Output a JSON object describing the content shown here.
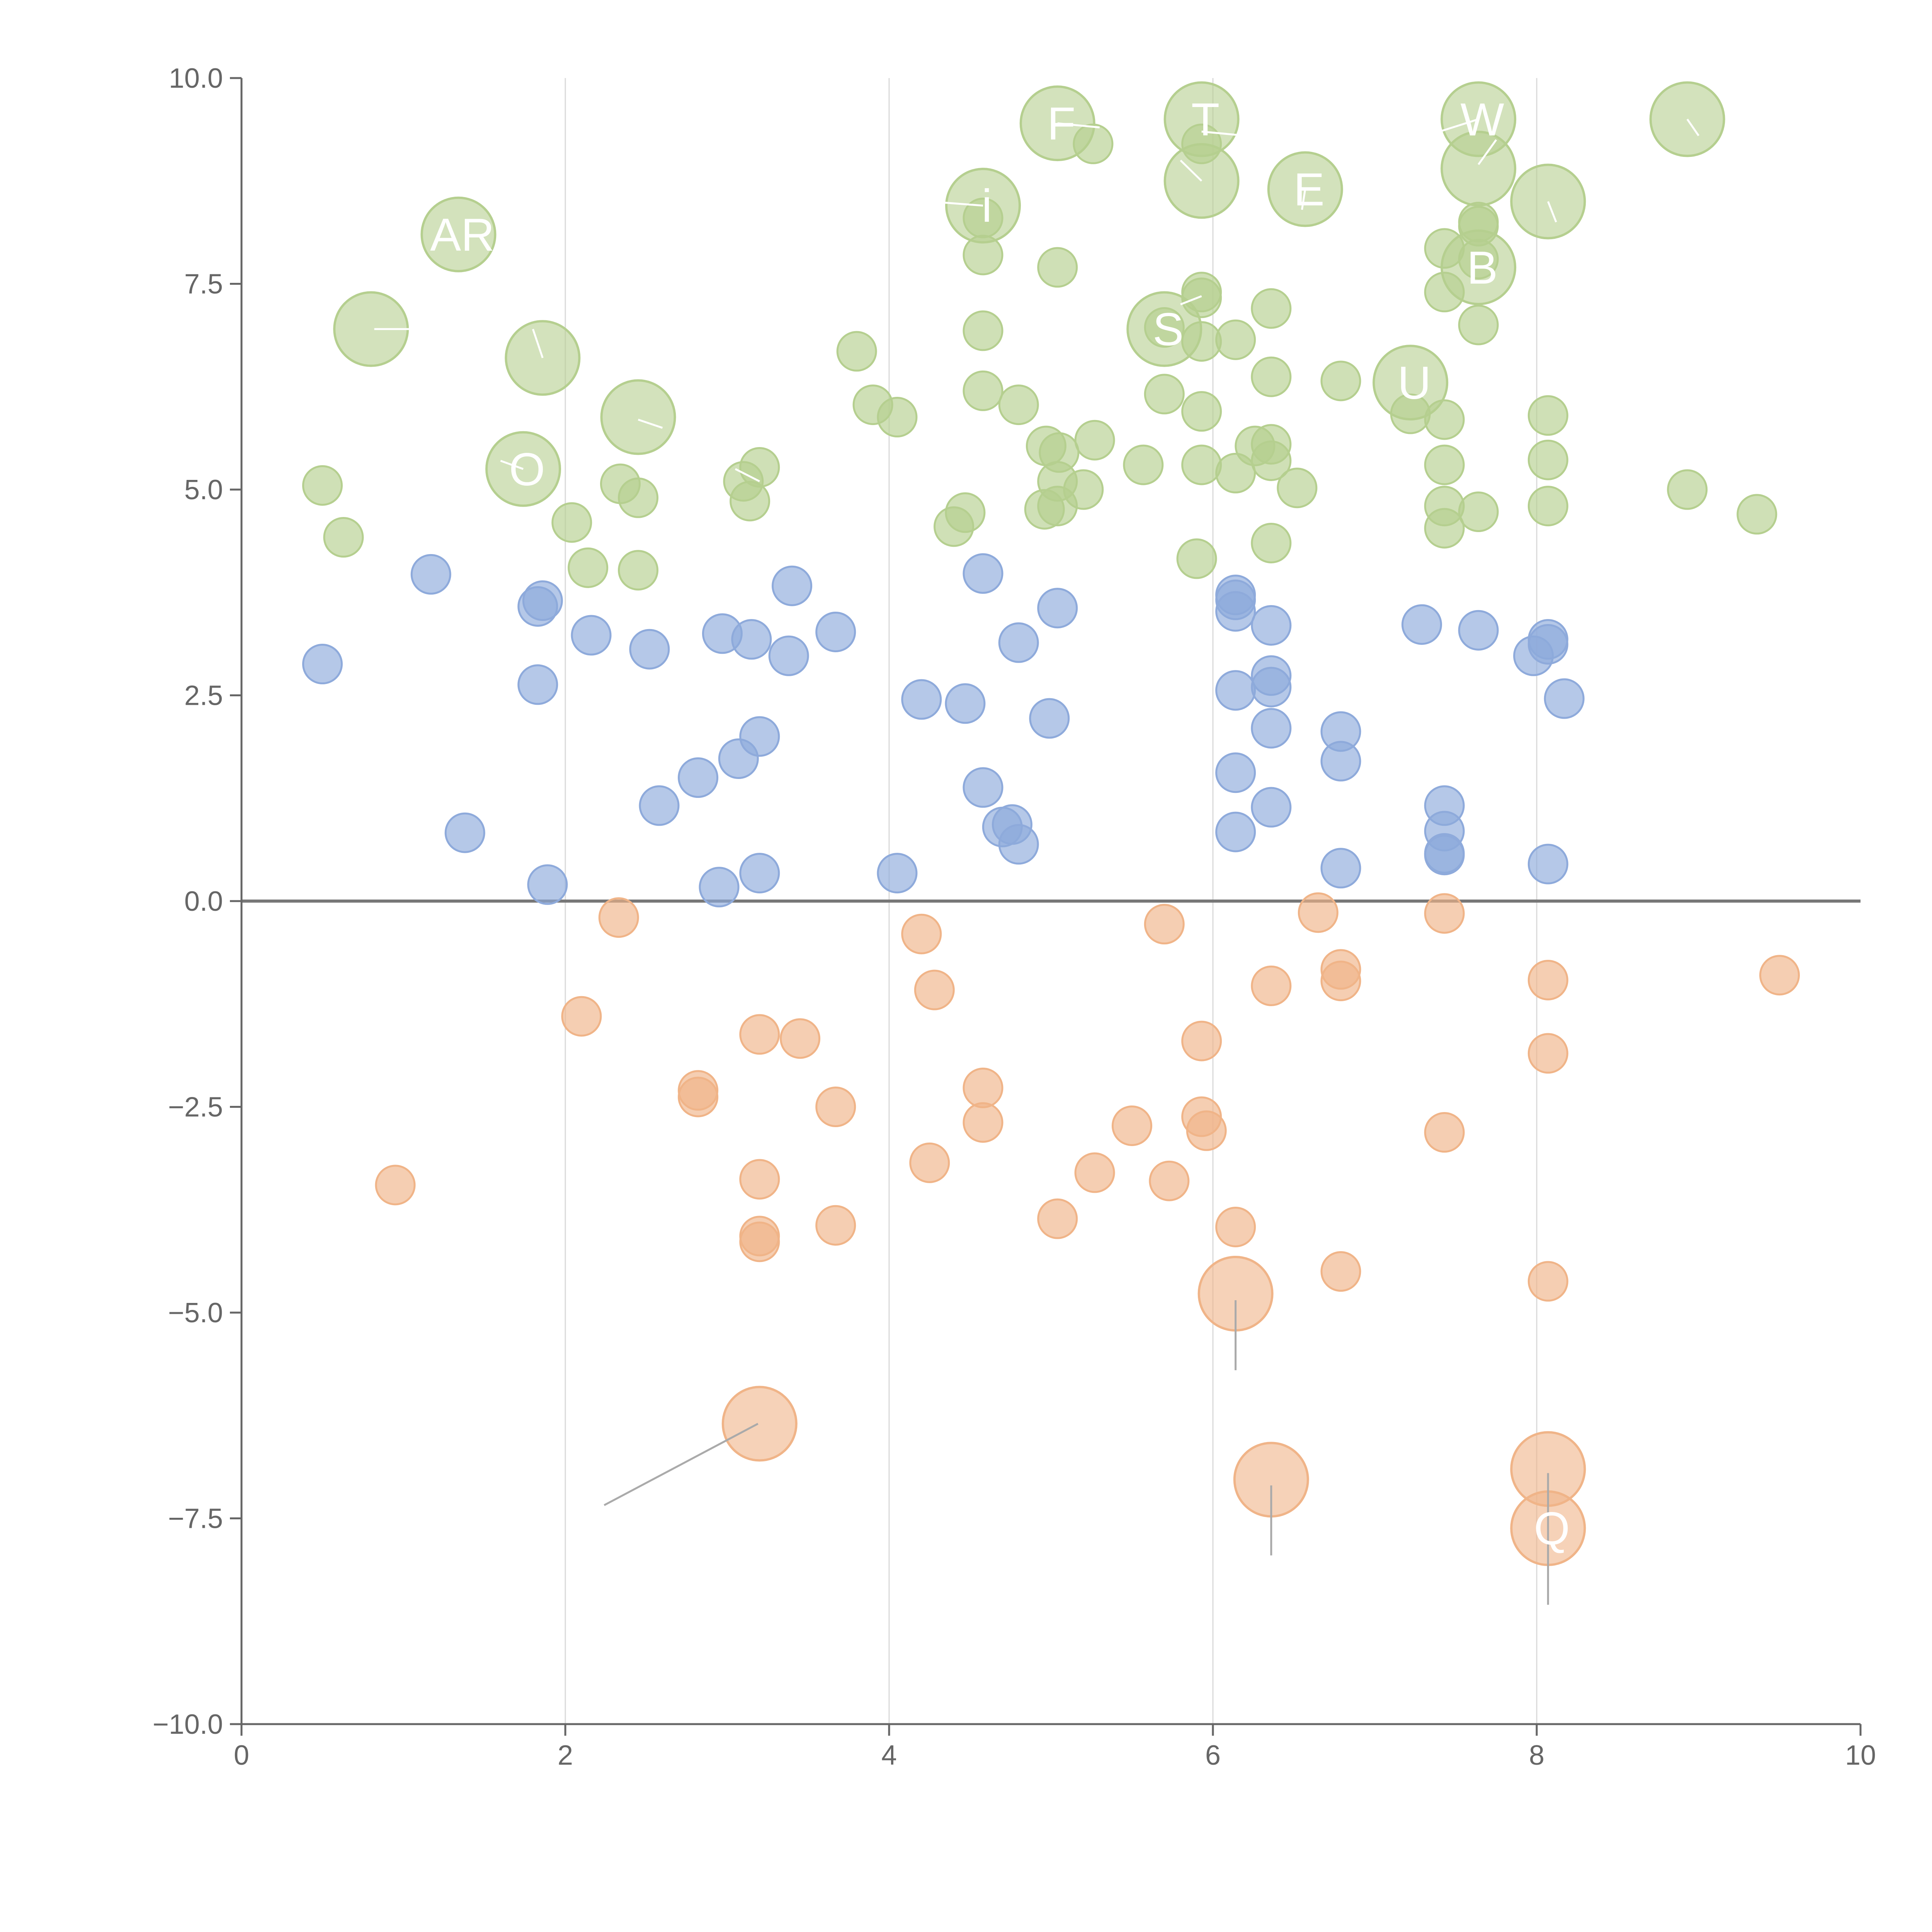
{
  "chart_data": {
    "type": "scatter",
    "title": "",
    "xlabel": "",
    "ylabel": "",
    "xlim": [
      0,
      10
    ],
    "ylim": [
      -10,
      10
    ],
    "x_ticks": [
      0,
      2,
      4,
      6,
      8,
      10
    ],
    "x_tick_labels": [
      "0",
      "2",
      "4",
      "6",
      "8",
      "10"
    ],
    "y_ticks": [
      -10,
      -7.5,
      -5,
      -2.5,
      0,
      2.5,
      5,
      7.5,
      10
    ],
    "y_tick_labels": [
      "−10.0",
      "−7.5",
      "−5.0",
      "−2.5",
      "0.0",
      "2.5",
      "5.0",
      "7.5",
      "10.0"
    ],
    "vertical_gridlines_at": [
      2,
      4,
      6,
      8
    ],
    "zero_line": 0,
    "colors": {
      "green": "#b5cf8f",
      "blue": "#8eaadb",
      "orange": "#f0b488",
      "axis": "#666666",
      "grid": "#d9d9d9",
      "zero_line": "#777777"
    },
    "series": [
      {
        "name": "green",
        "color": "#b5cf8f",
        "points": [
          [
            0.5,
            5.05
          ],
          [
            0.63,
            4.42
          ],
          [
            2.04,
            4.6
          ],
          [
            2.14,
            4.05
          ],
          [
            2.34,
            5.07
          ],
          [
            2.45,
            4.9
          ],
          [
            2.45,
            4.02
          ],
          [
            3.1,
            5.1
          ],
          [
            3.14,
            4.86
          ],
          [
            3.2,
            5.27
          ],
          [
            3.8,
            6.68
          ],
          [
            3.9,
            6.03
          ],
          [
            4.05,
            5.88
          ],
          [
            4.4,
            4.55
          ],
          [
            4.47,
            4.72
          ],
          [
            4.58,
            8.3
          ],
          [
            4.58,
            7.85
          ],
          [
            4.58,
            6.93
          ],
          [
            4.58,
            6.2
          ],
          [
            4.8,
            6.03
          ],
          [
            4.97,
            5.53
          ],
          [
            4.96,
            4.76
          ],
          [
            5.04,
            7.7
          ],
          [
            5.04,
            5.1
          ],
          [
            5.04,
            4.8
          ],
          [
            5.05,
            5.45
          ],
          [
            5.2,
            5.0
          ],
          [
            5.26,
            9.2
          ],
          [
            5.27,
            5.6
          ],
          [
            5.57,
            5.3
          ],
          [
            5.7,
            6.97
          ],
          [
            5.7,
            6.16
          ],
          [
            5.9,
            4.16
          ],
          [
            5.93,
            9.2
          ],
          [
            5.93,
            7.4
          ],
          [
            5.93,
            7.33
          ],
          [
            5.93,
            6.8
          ],
          [
            5.93,
            5.95
          ],
          [
            5.93,
            5.3
          ],
          [
            6.14,
            6.82
          ],
          [
            6.14,
            5.2
          ],
          [
            6.26,
            5.53
          ],
          [
            6.36,
            7.2
          ],
          [
            6.36,
            6.37
          ],
          [
            6.36,
            5.55
          ],
          [
            6.36,
            5.35
          ],
          [
            6.36,
            4.35
          ],
          [
            6.52,
            5.02
          ],
          [
            6.79,
            6.32
          ],
          [
            7.22,
            5.92
          ],
          [
            7.43,
            7.93
          ],
          [
            7.43,
            7.4
          ],
          [
            7.43,
            5.85
          ],
          [
            7.43,
            5.3
          ],
          [
            7.43,
            4.8
          ],
          [
            7.43,
            4.53
          ],
          [
            7.64,
            8.25
          ],
          [
            7.64,
            8.2
          ],
          [
            7.64,
            7.8
          ],
          [
            7.64,
            7.0
          ],
          [
            7.64,
            4.73
          ],
          [
            8.07,
            5.9
          ],
          [
            8.07,
            5.36
          ],
          [
            8.07,
            4.8
          ],
          [
            8.93,
            5.0
          ],
          [
            9.36,
            4.7
          ]
        ]
      },
      {
        "name": "blue",
        "color": "#8eaadb",
        "points": [
          [
            0.5,
            2.88
          ],
          [
            1.17,
            3.97
          ],
          [
            1.38,
            0.83
          ],
          [
            1.83,
            3.58
          ],
          [
            1.86,
            3.65
          ],
          [
            1.83,
            2.63
          ],
          [
            1.89,
            0.2
          ],
          [
            2.16,
            3.23
          ],
          [
            2.52,
            3.06
          ],
          [
            2.58,
            1.16
          ],
          [
            2.82,
            1.5
          ],
          [
            2.95,
            0.17
          ],
          [
            2.97,
            3.25
          ],
          [
            3.07,
            1.73
          ],
          [
            3.15,
            3.18
          ],
          [
            3.2,
            2.0
          ],
          [
            3.2,
            0.34
          ],
          [
            3.38,
            2.98
          ],
          [
            3.4,
            3.83
          ],
          [
            3.67,
            3.27
          ],
          [
            4.05,
            0.34
          ],
          [
            4.2,
            2.45
          ],
          [
            4.47,
            2.4
          ],
          [
            4.58,
            3.98
          ],
          [
            4.58,
            1.38
          ],
          [
            4.7,
            0.9
          ],
          [
            4.76,
            0.93
          ],
          [
            4.8,
            3.14
          ],
          [
            4.8,
            0.69
          ],
          [
            4.99,
            2.22
          ],
          [
            5.04,
            3.56
          ],
          [
            6.14,
            3.72
          ],
          [
            6.14,
            3.66
          ],
          [
            6.14,
            3.52
          ],
          [
            6.14,
            2.56
          ],
          [
            6.14,
            1.56
          ],
          [
            6.14,
            0.84
          ],
          [
            6.36,
            3.35
          ],
          [
            6.36,
            2.74
          ],
          [
            6.36,
            2.6
          ],
          [
            6.36,
            2.1
          ],
          [
            6.36,
            1.14
          ],
          [
            6.79,
            2.06
          ],
          [
            6.79,
            1.7
          ],
          [
            6.79,
            0.4
          ],
          [
            7.29,
            3.36
          ],
          [
            7.43,
            1.16
          ],
          [
            7.43,
            0.85
          ],
          [
            7.43,
            0.58
          ],
          [
            7.43,
            0.56
          ],
          [
            7.64,
            3.29
          ],
          [
            7.98,
            2.98
          ],
          [
            8.07,
            3.18
          ],
          [
            8.07,
            3.12
          ],
          [
            8.07,
            0.45
          ],
          [
            8.17,
            2.46
          ]
        ]
      },
      {
        "name": "orange",
        "color": "#f0b488",
        "points": [
          [
            0.95,
            -3.45
          ],
          [
            2.1,
            -1.4
          ],
          [
            2.33,
            -0.2
          ],
          [
            2.82,
            -2.3
          ],
          [
            2.82,
            -2.38
          ],
          [
            3.2,
            -1.62
          ],
          [
            3.2,
            -3.38
          ],
          [
            3.2,
            -4.07
          ],
          [
            3.2,
            -4.14
          ],
          [
            3.45,
            -1.67
          ],
          [
            3.67,
            -2.5
          ],
          [
            3.67,
            -3.94
          ],
          [
            4.2,
            -0.4
          ],
          [
            4.28,
            -1.08
          ],
          [
            4.25,
            -3.18
          ],
          [
            4.58,
            -2.27
          ],
          [
            4.58,
            -2.69
          ],
          [
            5.04,
            -3.86
          ],
          [
            5.27,
            -3.3
          ],
          [
            5.5,
            -2.73
          ],
          [
            5.7,
            -0.28
          ],
          [
            5.73,
            -3.4
          ],
          [
            5.93,
            -1.7
          ],
          [
            5.93,
            -2.62
          ],
          [
            5.96,
            -2.79
          ],
          [
            6.14,
            -3.96
          ],
          [
            6.36,
            -1.03
          ],
          [
            6.65,
            -0.14
          ],
          [
            6.79,
            -0.83
          ],
          [
            6.79,
            -0.97
          ],
          [
            6.79,
            -4.5
          ],
          [
            7.43,
            -0.15
          ],
          [
            7.43,
            -2.81
          ],
          [
            8.07,
            -0.96
          ],
          [
            8.07,
            -1.85
          ],
          [
            8.07,
            -4.62
          ],
          [
            9.5,
            -0.9
          ]
        ]
      }
    ],
    "labeled_bubbles": [
      {
        "series": "green",
        "x": 0.8,
        "y": 6.95,
        "text": ""
      },
      {
        "series": "green",
        "x": 1.34,
        "y": 8.1,
        "text": "AR"
      },
      {
        "series": "green",
        "x": 1.74,
        "y": 5.25,
        "text": "O"
      },
      {
        "series": "green",
        "x": 1.86,
        "y": 6.6,
        "text": ""
      },
      {
        "series": "green",
        "x": 2.45,
        "y": 5.88,
        "text": ""
      },
      {
        "series": "green",
        "x": 4.58,
        "y": 8.45,
        "text": "i"
      },
      {
        "series": "green",
        "x": 5.04,
        "y": 9.45,
        "text": "F"
      },
      {
        "series": "green",
        "x": 5.93,
        "y": 9.5,
        "text": "T"
      },
      {
        "series": "green",
        "x": 5.93,
        "y": 8.75,
        "text": ""
      },
      {
        "series": "green",
        "x": 6.57,
        "y": 8.65,
        "text": "E"
      },
      {
        "series": "green",
        "x": 7.64,
        "y": 9.5,
        "text": "W"
      },
      {
        "series": "green",
        "x": 7.64,
        "y": 8.9,
        "text": ""
      },
      {
        "series": "green",
        "x": 8.07,
        "y": 8.5,
        "text": ""
      },
      {
        "series": "green",
        "x": 8.93,
        "y": 9.5,
        "text": ""
      },
      {
        "series": "green",
        "x": 5.7,
        "y": 6.95,
        "text": "S"
      },
      {
        "series": "green",
        "x": 7.64,
        "y": 7.7,
        "text": "B"
      },
      {
        "series": "green",
        "x": 7.22,
        "y": 6.3,
        "text": "U"
      },
      {
        "series": "orange",
        "x": 3.2,
        "y": -6.35,
        "text": ""
      },
      {
        "series": "orange",
        "x": 6.14,
        "y": -4.77,
        "text": ""
      },
      {
        "series": "orange",
        "x": 6.36,
        "y": -7.03,
        "text": ""
      },
      {
        "series": "orange",
        "x": 8.07,
        "y": -6.9,
        "text": ""
      },
      {
        "series": "orange",
        "x": 8.07,
        "y": -7.62,
        "text": "Q"
      }
    ],
    "leader_lines": [
      {
        "from": [
          3.19,
          -6.35
        ],
        "to": [
          2.24,
          -7.34
        ],
        "color": "#aaaaaa"
      },
      {
        "from": [
          6.14,
          -4.85
        ],
        "to": [
          6.14,
          -5.7
        ],
        "color": "#aaaaaa"
      },
      {
        "from": [
          6.36,
          -7.1
        ],
        "to": [
          6.36,
          -7.95
        ],
        "color": "#aaaaaa"
      },
      {
        "from": [
          8.07,
          -6.95
        ],
        "to": [
          8.07,
          -8.55
        ],
        "color": "#aaaaaa"
      },
      {
        "from": [
          0.82,
          6.95
        ],
        "to": [
          1.12,
          6.95
        ],
        "color": "#ffffff"
      },
      {
        "from": [
          1.86,
          6.6
        ],
        "to": [
          1.8,
          6.95
        ],
        "color": "#ffffff"
      },
      {
        "from": [
          1.74,
          5.25
        ],
        "to": [
          1.6,
          5.35
        ],
        "color": "#ffffff"
      },
      {
        "from": [
          2.45,
          5.85
        ],
        "to": [
          2.6,
          5.75
        ],
        "color": "#ffffff"
      },
      {
        "from": [
          3.2,
          5.1
        ],
        "to": [
          3.05,
          5.25
        ],
        "color": "#ffffff"
      },
      {
        "from": [
          4.58,
          8.45
        ],
        "to": [
          4.25,
          8.5
        ],
        "color": "#ffffff"
      },
      {
        "from": [
          5.04,
          9.45
        ],
        "to": [
          5.3,
          9.4
        ],
        "color": "#ffffff"
      },
      {
        "from": [
          5.93,
          8.75
        ],
        "to": [
          5.8,
          9.0
        ],
        "color": "#ffffff"
      },
      {
        "from": [
          5.93,
          9.35
        ],
        "to": [
          6.2,
          9.3
        ],
        "color": "#ffffff"
      },
      {
        "from": [
          6.57,
          8.65
        ],
        "to": [
          6.55,
          8.4
        ],
        "color": "#ffffff"
      },
      {
        "from": [
          7.64,
          9.5
        ],
        "to": [
          7.4,
          9.35
        ],
        "color": "#ffffff"
      },
      {
        "from": [
          7.64,
          8.95
        ],
        "to": [
          7.75,
          9.25
        ],
        "color": "#ffffff"
      },
      {
        "from": [
          8.07,
          8.5
        ],
        "to": [
          8.12,
          8.25
        ],
        "color": "#ffffff"
      },
      {
        "from": [
          8.93,
          9.5
        ],
        "to": [
          9.0,
          9.3
        ],
        "color": "#ffffff"
      },
      {
        "from": [
          5.93,
          7.35
        ],
        "to": [
          5.8,
          7.25
        ],
        "color": "#ffffff"
      }
    ]
  }
}
